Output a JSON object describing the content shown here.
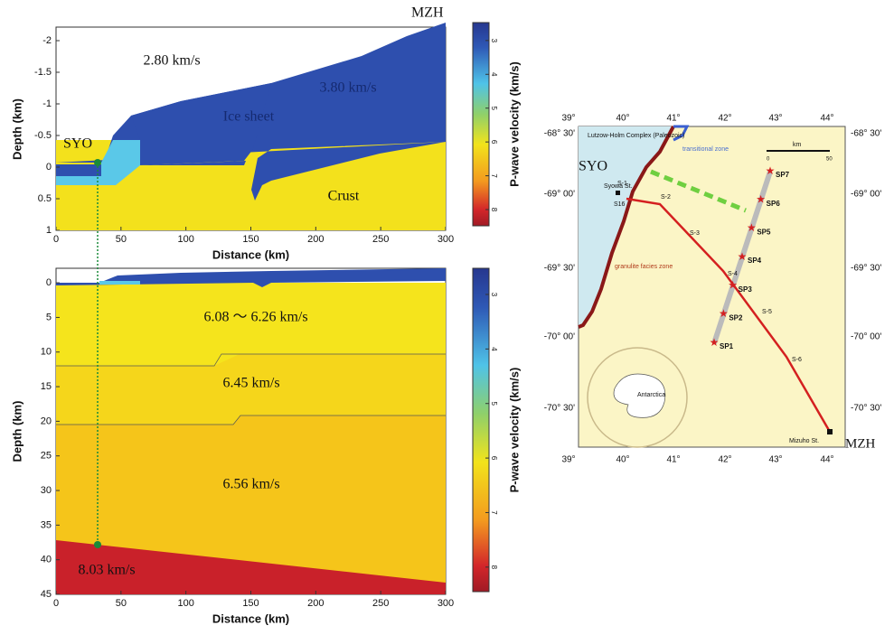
{
  "top_panel": {
    "x_axis": {
      "label": "Distance (km)",
      "range": [
        0,
        300
      ],
      "ticks": [
        0,
        50,
        100,
        150,
        200,
        250,
        300
      ]
    },
    "y_axis": {
      "label": "Depth (km)",
      "range": [
        -2.2,
        1
      ],
      "ticks": [
        -2,
        -1.5,
        -1,
        -0.5,
        0,
        0.5,
        1
      ]
    },
    "colorbar": {
      "label": "P-wave velocity (km/s)",
      "range": [
        2.47,
        8.48
      ],
      "ticks": [
        3,
        4,
        5,
        6,
        7,
        8
      ]
    },
    "annotations": [
      "2.80 km/s",
      "3.80 km/s",
      "Ice sheet",
      "Crust",
      "SYO",
      "MZH"
    ]
  },
  "bottom_panel": {
    "x_axis": {
      "label": "Distance (km)",
      "range": [
        0,
        300
      ],
      "ticks": [
        0,
        50,
        100,
        150,
        200,
        250,
        300
      ]
    },
    "y_axis": {
      "label": "Depth (km)",
      "range": [
        -2.1,
        45
      ],
      "ticks": [
        0,
        5,
        10,
        15,
        20,
        25,
        30,
        35,
        40,
        45
      ]
    },
    "colorbar": {
      "label": "P-wave velocity (km/s)",
      "range": [
        2.52,
        8.45
      ],
      "ticks": [
        3,
        4,
        5,
        6,
        7,
        8
      ]
    },
    "annotations": [
      "6.08 〜 6.26 km/s",
      "6.45 km/s",
      "6.56 km/s",
      "8.03 km/s"
    ]
  },
  "map": {
    "lon_labels": [
      "39°",
      "40°",
      "41°",
      "42°",
      "43°",
      "44°"
    ],
    "lat_labels": [
      "-68° 30'",
      "-69° 00'",
      "-69° 30'",
      "-70° 00'",
      "-70° 30'"
    ],
    "labels": [
      "Lutzow-Holm Complex (Paleozoic)",
      "transitional zone",
      "SYO",
      "Syowa St.",
      "S-1",
      "S16",
      "S-2",
      "S-3",
      "S-4",
      "S-5",
      "S-6",
      "granulite facies zone",
      "Antarctica",
      "Mizuho St.",
      "MZH",
      "km",
      "0",
      "50"
    ],
    "shot_points": [
      "SP1",
      "SP2",
      "SP3",
      "SP4",
      "SP5",
      "SP6",
      "SP7"
    ]
  }
}
